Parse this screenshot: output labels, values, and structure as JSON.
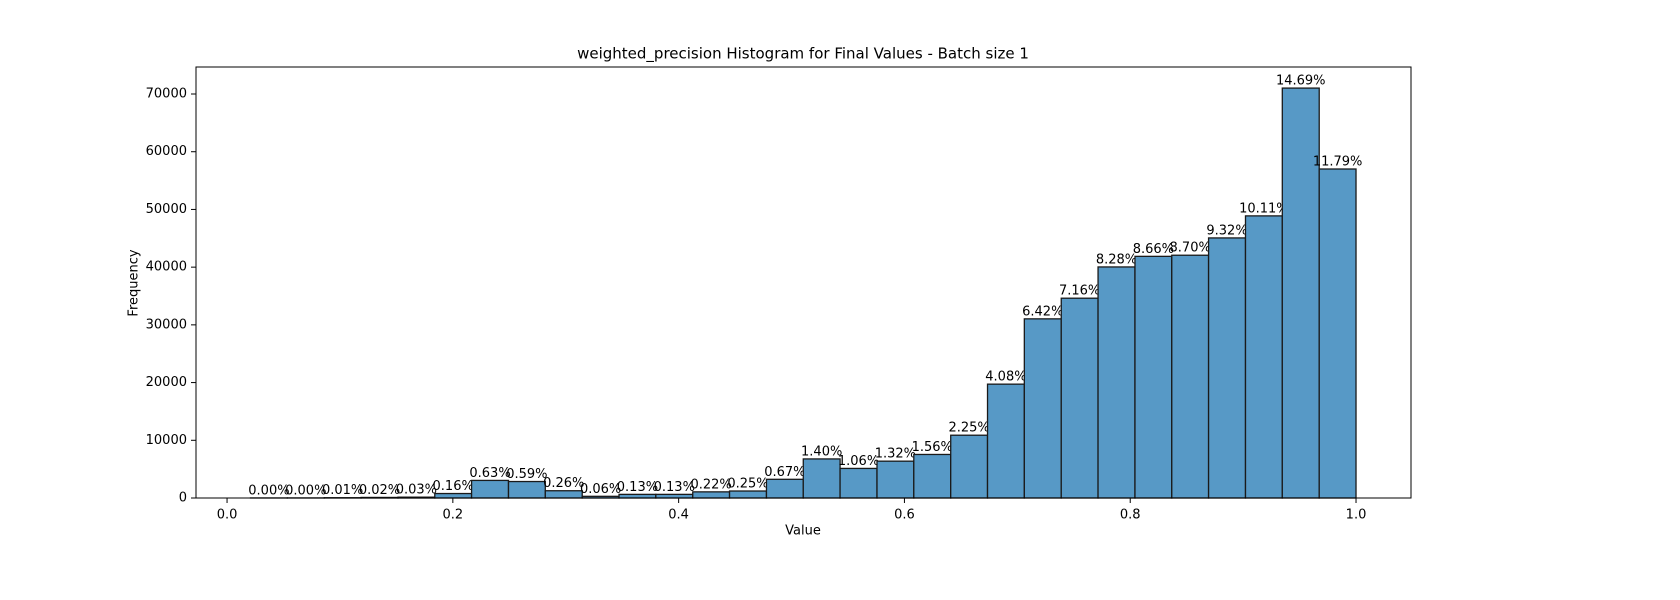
{
  "chart_data": {
    "type": "histogram",
    "title": "weighted_precision Histogram for Final Values - Batch size 1",
    "xlabel": "Value",
    "ylabel": "Frequency",
    "bins": [
      0.0208,
      0.0534,
      0.0861,
      0.1187,
      0.1514,
      0.184,
      0.2166,
      0.2493,
      0.2819,
      0.3146,
      0.3472,
      0.3798,
      0.4125,
      0.4451,
      0.4778,
      0.5104,
      0.543,
      0.5757,
      0.6083,
      0.641,
      0.6736,
      0.7062,
      0.7389,
      0.7715,
      0.8042,
      0.8368,
      0.8694,
      0.9021,
      0.9347,
      0.9674,
      1.0
    ],
    "values": [
      10,
      15,
      48,
      97,
      145,
      774,
      3046,
      2853,
      1257,
      290,
      629,
      629,
      1064,
      1209,
      3239,
      6769,
      5125,
      6382,
      7543,
      10879,
      19727,
      31041,
      34619,
      40034,
      41871,
      42065,
      45062,
      48882,
      71026,
      57005
    ],
    "value_labels": [
      "0.00%",
      "0.00%",
      "0.01%",
      "0.02%",
      "0.03%",
      "0.16%",
      "0.63%",
      "0.59%",
      "0.26%",
      "0.06%",
      "0.13%",
      "0.13%",
      "0.22%",
      "0.25%",
      "0.67%",
      "1.40%",
      "1.06%",
      "1.32%",
      "1.56%",
      "2.25%",
      "4.08%",
      "6.42%",
      "7.16%",
      "8.28%",
      "8.66%",
      "8.70%",
      "9.32%",
      "10.11%",
      "14.69%",
      "11.79%"
    ],
    "color": "#5799c6",
    "edgecolor": "#1a1a1a",
    "xlim": [
      -0.0275,
      1.0487
    ],
    "xticks": [
      {
        "value": 0,
        "label": "0.0"
      },
      0.2,
      0.4,
      0.6,
      0.8,
      {
        "value": 1,
        "label": "1.0"
      }
    ],
    "ylim": [
      0,
      74680
    ],
    "yticks": [
      0,
      10000,
      20000,
      30000,
      40000,
      50000,
      60000,
      70000
    ]
  }
}
